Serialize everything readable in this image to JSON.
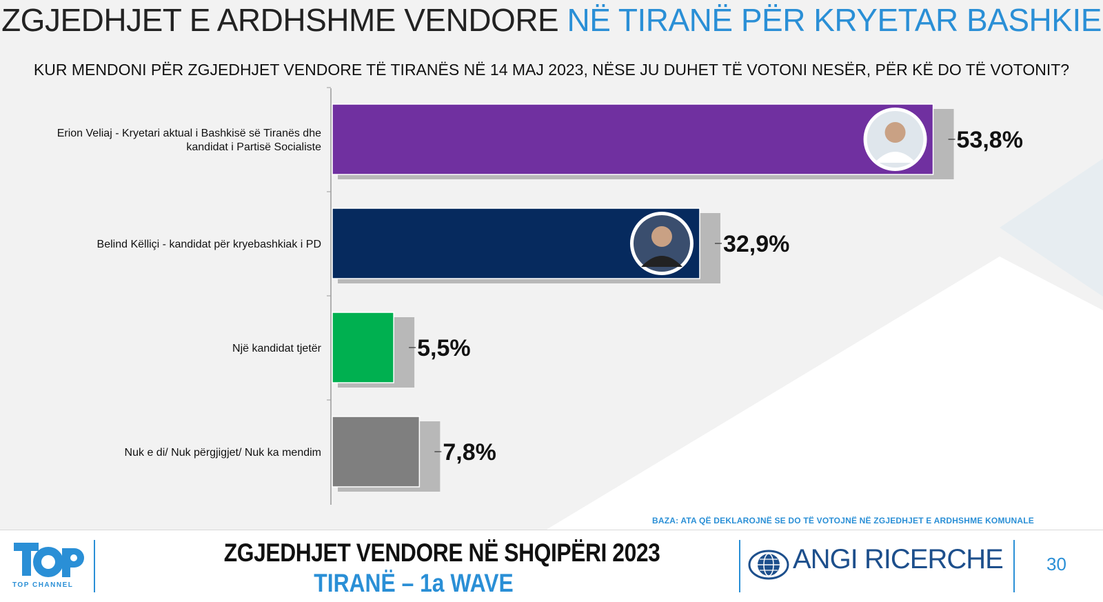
{
  "header": {
    "title_main": "ZGJEDHJET E ARDHSHME VENDORE",
    "title_accent": "NË TIRANË PËR KRYETAR BASHKIE",
    "subtitle": "KUR MENDONI PËR ZGJEDHJET VENDORE TË TIRANËS NË 14 MAJ 2023, NËSE JU DUHET TË VOTONI NESËR, PËR KË DO TË VOTONIT?"
  },
  "chart_data": {
    "type": "bar",
    "orientation": "horizontal",
    "categories": [
      [
        "Erion Veliaj - Kryetari aktual i Bashkisë së Tiranës dhe",
        "kandidat i Partisë Socialiste"
      ],
      [
        "Belind Këlliçi - kandidat për kryebashkiak i PD"
      ],
      [
        "Një kandidat tjetër"
      ],
      [
        "Nuk e di/ Nuk përgjigjet/ Nuk ka mendim"
      ]
    ],
    "values": [
      53.8,
      32.9,
      5.5,
      7.8
    ],
    "value_labels": [
      "53,8%",
      "32,9%",
      "5,5%",
      "7,8%"
    ],
    "colors": [
      "#7030a0",
      "#062a5e",
      "#00b050",
      "#7f7f7f"
    ],
    "has_photo": [
      true,
      true,
      false,
      false
    ],
    "grid": false,
    "legend": "none"
  },
  "base_note": "BAZA: ATA QË DEKLAROJNË SE DO TË VOTOJNË NË ZGJEDHJET E ARDHSHME KOMUNALE",
  "footer": {
    "channel_logo_text": "TOP CHANNEL",
    "title": "ZGJEDHJET VENDORE NË SHQIPËRI 2023",
    "subtitle": "TIRANË – 1a WAVE",
    "company": "ANGI RICERCHE",
    "page_number": "30"
  },
  "colors": {
    "accent": "#2a8fd6",
    "shadow": "#b8b8b8"
  }
}
